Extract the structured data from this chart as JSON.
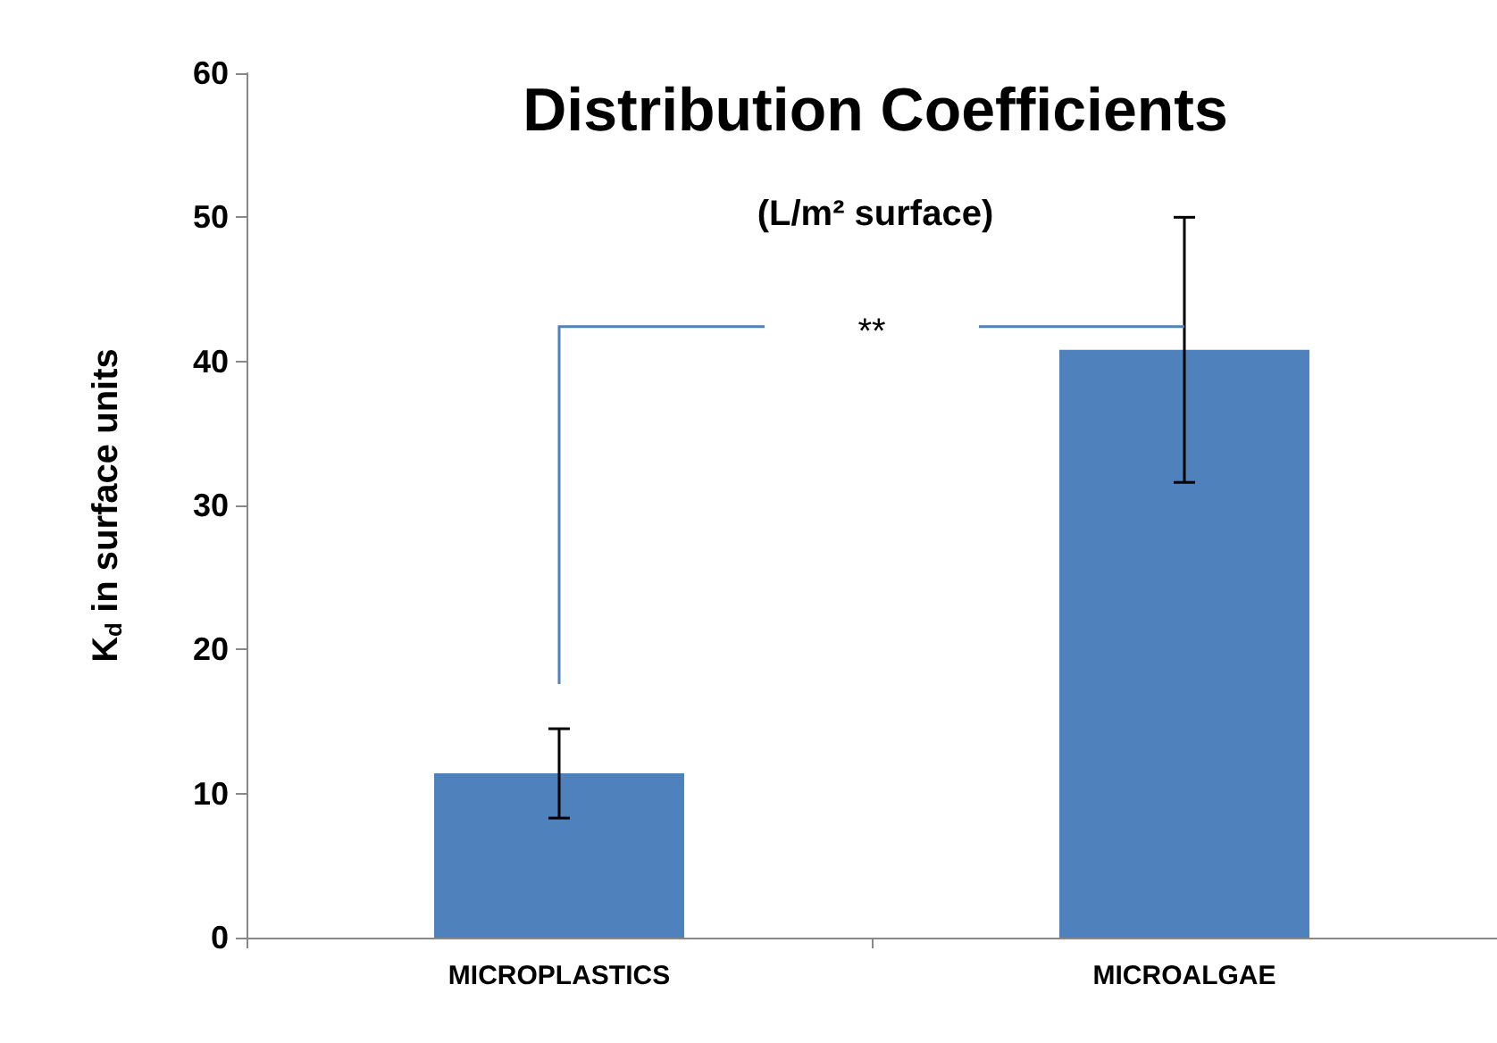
{
  "chart_data": {
    "type": "bar",
    "title": "Distribution Coefficients",
    "subtitle": "(L/m² surface)",
    "ylabel": "K$_{d}$ in surface units",
    "categories": [
      "MICROPLASTICS",
      "MICROALGAE"
    ],
    "values": [
      11.4,
      40.8
    ],
    "errors": [
      3.1,
      9.2
    ],
    "color": "#4f81bd",
    "ylim": [
      0,
      60
    ],
    "yticks": [
      0,
      10,
      20,
      30,
      40,
      50,
      60
    ],
    "grid": false,
    "annotations": [
      "**"
    ]
  }
}
